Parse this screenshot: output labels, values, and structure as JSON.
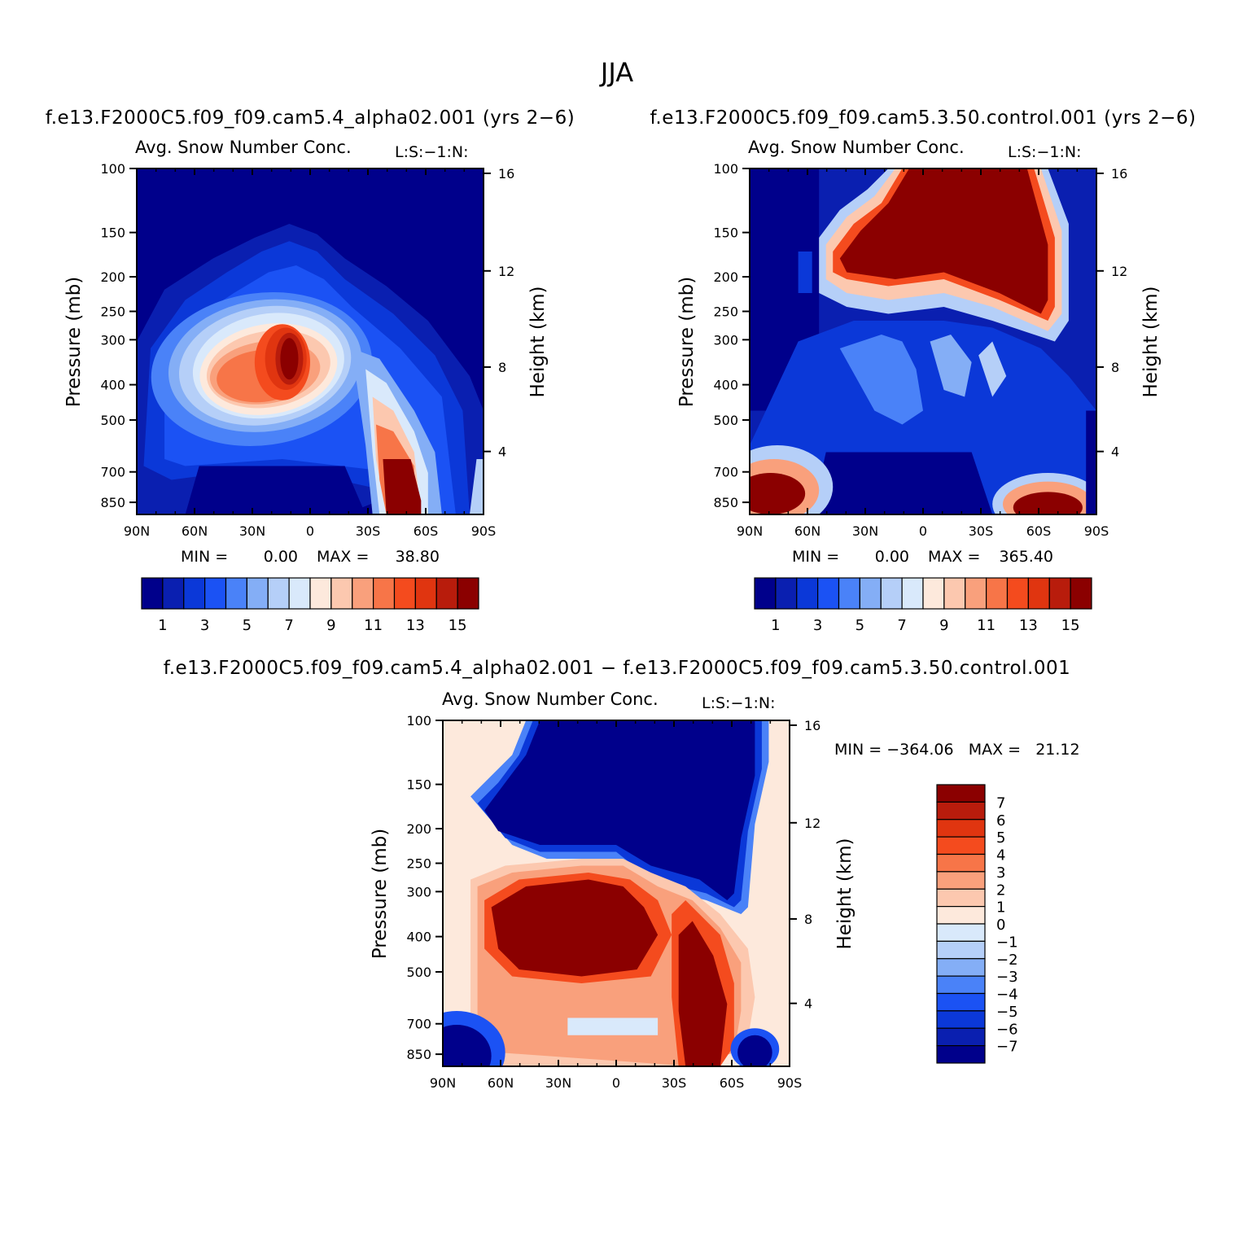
{
  "title": "JJA",
  "chart_data": [
    {
      "type": "contour",
      "id": "panel1",
      "run_label": "f.e13.F2000C5.f09_f09.cam5.4_alpha02.001 (yrs 2−6)",
      "variable": "Avg. Snow Number Conc.",
      "code": "L:S:−1:N:",
      "ylabel_left": "Pressure (mb)",
      "ylabel_right": "Height (km)",
      "x_ticks": [
        "90N",
        "60N",
        "30N",
        "0",
        "30S",
        "60S",
        "90S"
      ],
      "p_ticks": [
        "100",
        "150",
        "200",
        "250",
        "300",
        "400",
        "500",
        "700",
        "850"
      ],
      "h_ticks": [
        "16",
        "12",
        "8",
        "4"
      ],
      "min_text": "MIN =",
      "min_val": "0.00",
      "max_text": "MAX =",
      "max_val": "38.80",
      "colorbar_labels": [
        "1",
        "3",
        "5",
        "7",
        "9",
        "11",
        "13",
        "15"
      ],
      "field": "alpha",
      "min": 0.0,
      "max": 38.8
    },
    {
      "type": "contour",
      "id": "panel2",
      "run_label": "f.e13.F2000C5.f09_f09.cam5.3.50.control.001 (yrs 2−6)",
      "variable": "Avg. Snow Number Conc.",
      "code": "L:S:−1:N:",
      "ylabel_left": "Pressure (mb)",
      "ylabel_right": "Height (km)",
      "x_ticks": [
        "90N",
        "60N",
        "30N",
        "0",
        "30S",
        "60S",
        "90S"
      ],
      "p_ticks": [
        "100",
        "150",
        "200",
        "250",
        "300",
        "400",
        "500",
        "700",
        "850"
      ],
      "h_ticks": [
        "16",
        "12",
        "8",
        "4"
      ],
      "min_text": "MIN =",
      "min_val": "0.00",
      "max_text": "MAX =",
      "max_val": "365.40",
      "colorbar_labels": [
        "1",
        "3",
        "5",
        "7",
        "9",
        "11",
        "13",
        "15"
      ],
      "field": "control",
      "min": 0.0,
      "max": 365.4
    },
    {
      "type": "contour",
      "id": "panel3",
      "run_label": "f.e13.F2000C5.f09_f09.cam5.4_alpha02.001 − f.e13.F2000C5.f09_f09.cam5.3.50.control.001",
      "variable": "Avg. Snow Number Conc.",
      "code": "L:S:−1:N:",
      "ylabel_left": "Pressure (mb)",
      "ylabel_right": "Height (km)",
      "x_ticks": [
        "90N",
        "60N",
        "30N",
        "0",
        "30S",
        "60S",
        "90S"
      ],
      "p_ticks": [
        "100",
        "150",
        "200",
        "250",
        "300",
        "400",
        "500",
        "700",
        "850"
      ],
      "h_ticks": [
        "16",
        "12",
        "8",
        "4"
      ],
      "minmax_text": "MIN = −364.06   MAX =   21.12",
      "colorbar_labels": [
        "7",
        "6",
        "5",
        "4",
        "3",
        "2",
        "1",
        "0",
        "−1",
        "−2",
        "−3",
        "−4",
        "−5",
        "−6",
        "−7"
      ],
      "field": "diff",
      "min": -364.06,
      "max": 21.12
    }
  ],
  "palette": [
    "#00008b",
    "#0a1fb0",
    "#0b38d8",
    "#1b52f4",
    "#4a82f8",
    "#84aef6",
    "#b5cff8",
    "#d9e9fb",
    "#fde9dc",
    "#fcc8af",
    "#f9a07c",
    "#f77548",
    "#f44b1e",
    "#e03510",
    "#b81c0c",
    "#8b0000"
  ]
}
